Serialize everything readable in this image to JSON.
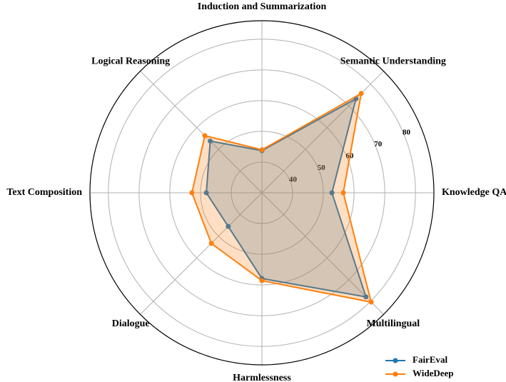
{
  "chart_data": {
    "type": "radar",
    "categories": [
      "Knowledge QA",
      "Semantic Understanding",
      "Induction and Summarization",
      "Logical Reasoning",
      "Text Composition",
      "Dialogue",
      "Harmlessness",
      "Multilingual"
    ],
    "series": [
      {
        "name": "FairEval",
        "color": "#1f77b4",
        "values": [
          52.8,
          73.3,
          43.7,
          53.8,
          48.1,
          45.5,
          57.9,
          77.9
        ]
      },
      {
        "name": "WideDeep",
        "color": "#ff7f0e",
        "values": [
          56.5,
          75.7,
          44.0,
          56.3,
          52.8,
          53.3,
          58.6,
          80.3
        ]
      }
    ],
    "ylim": [
      30,
      86
    ],
    "yticks": [
      40,
      50,
      60,
      70,
      80
    ],
    "grid": true,
    "legend": "lower right"
  }
}
